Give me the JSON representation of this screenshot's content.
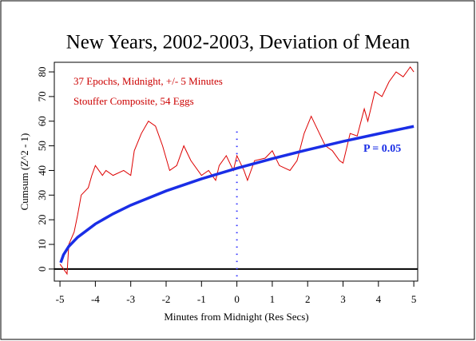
{
  "chart_data": {
    "type": "line",
    "title": "New Years, 2002-2003, Deviation of Mean",
    "xlabel": "Minutes from Midnight (Res Secs)",
    "ylabel": "Cumsum (Z^2 - 1)",
    "annotations": [
      "37 Epochs, Midnight, +/- 5 Minutes",
      "Stouffer Composite, 54 Eggs"
    ],
    "xlim": [
      -5.16,
      5.11
    ],
    "ylim": [
      -4.9,
      83.9
    ],
    "xticks": [
      -5,
      -4,
      -3,
      -2,
      -1,
      0,
      1,
      2,
      3,
      4,
      5
    ],
    "yticks": [
      0,
      10,
      20,
      30,
      40,
      50,
      60,
      70,
      80
    ],
    "hline": 0,
    "vline": {
      "x": 0,
      "y": [
        -3,
        57
      ],
      "color": "#3333ff"
    },
    "series": [
      {
        "color": "#dd0000",
        "x": [
          -5,
          -4.9,
          -4.8,
          -4.75,
          -4.6,
          -4.5,
          -4.4,
          -4.2,
          -4.1,
          -4.0,
          -3.8,
          -3.7,
          -3.5,
          -3.2,
          -3.0,
          -2.9,
          -2.7,
          -2.5,
          -2.3,
          -2.1,
          -1.9,
          -1.7,
          -1.5,
          -1.3,
          -1.0,
          -0.8,
          -0.6,
          -0.5,
          -0.3,
          -0.1,
          0.0,
          0.2,
          0.3,
          0.5,
          0.8,
          1.0,
          1.2,
          1.5,
          1.7,
          1.9,
          2.1,
          2.3,
          2.5,
          2.7,
          2.9,
          3.0,
          3.2,
          3.4,
          3.6,
          3.7,
          3.9,
          4.1,
          4.3,
          4.5,
          4.7,
          4.9,
          5.0
        ],
        "values": [
          2,
          0,
          -2,
          10,
          15,
          22,
          30,
          33,
          38,
          42,
          38,
          40,
          38,
          40,
          38,
          48,
          55,
          60,
          58,
          50,
          40,
          42,
          50,
          44,
          38,
          40,
          36,
          42,
          46,
          40,
          46,
          40,
          36,
          44,
          45,
          48,
          42,
          40,
          44,
          55,
          62,
          56,
          50,
          48,
          44,
          43,
          55,
          54,
          65,
          60,
          72,
          70,
          76,
          80,
          78,
          82,
          80
        ]
      },
      {
        "name": "P = 0.05",
        "color": "#1a2ee6",
        "x": [
          -4.98,
          -4.9,
          -4.75,
          -4.5,
          -4,
          -3.5,
          -3,
          -2,
          -1,
          0,
          1,
          2,
          3,
          4,
          5
        ],
        "values": [
          2.6,
          5.8,
          9.2,
          12.9,
          18.3,
          22.4,
          25.9,
          31.7,
          36.6,
          40.9,
          44.8,
          48.4,
          51.8,
          54.9,
          57.9
        ]
      }
    ]
  }
}
